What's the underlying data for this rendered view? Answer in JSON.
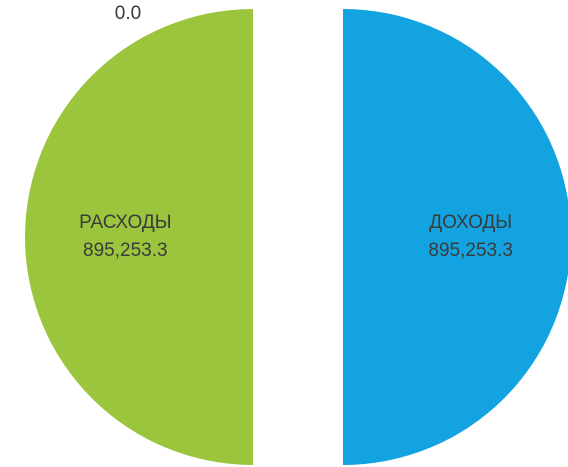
{
  "chart_data": {
    "type": "pie",
    "categories": [
      "ДОХОДЫ",
      "РАСХОДЫ",
      null
    ],
    "values": [
      895253.3,
      895253.3,
      0
    ],
    "value_labels": [
      "895,253.3",
      "895,253.3",
      "0.0"
    ],
    "colors": [
      "#12a3e0",
      "#9bc53d",
      "#f0a030"
    ]
  }
}
